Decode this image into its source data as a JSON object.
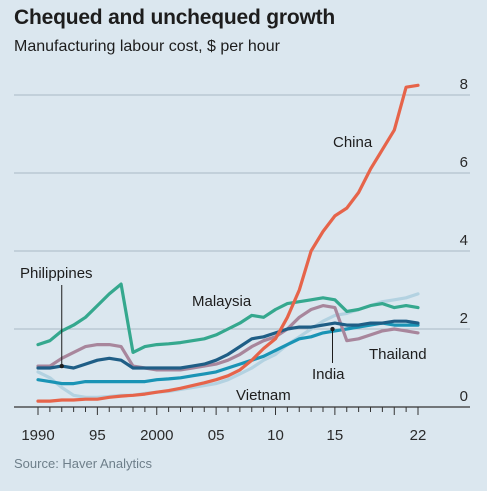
{
  "header": {
    "title": "Chequed and unchequed growth",
    "subtitle": "Manufacturing labour cost, $ per hour"
  },
  "footer": {
    "source": "Source: Haver Analytics"
  },
  "colors": {
    "background": "#dbe7ef",
    "gridline": "#aab9c4",
    "China": "#e6644a",
    "Malaysia": "#35a88e",
    "Philippines": "#a8869c",
    "India": "#1f5e86",
    "Thailand": "#1a94b5",
    "Vietnam": "#b3d2e1"
  },
  "chart_data": {
    "type": "line",
    "title": "Chequed and unchequed growth",
    "subtitle": "Manufacturing labour cost, $ per hour",
    "xlabel": "",
    "ylabel": "",
    "xlim": [
      1990,
      2022
    ],
    "ylim": [
      0,
      8
    ],
    "y_ticks": [
      0,
      2,
      4,
      6,
      8
    ],
    "y_tick_labels": [
      "0",
      "2",
      "4",
      "6",
      "8"
    ],
    "x_tick_labels": [
      {
        "x": 1990,
        "label": "1990"
      },
      {
        "x": 1995,
        "label": "95"
      },
      {
        "x": 2000,
        "label": "2000"
      },
      {
        "x": 2005,
        "label": "05"
      },
      {
        "x": 2010,
        "label": "10"
      },
      {
        "x": 2015,
        "label": "15"
      },
      {
        "x": 2022,
        "label": "22"
      }
    ],
    "y_axis_position": "right",
    "grid": true,
    "legend": "direct labels",
    "series": [
      {
        "name": "Malaysia",
        "x": [
          1990,
          1991,
          1992,
          1993,
          1994,
          1995,
          1996,
          1997,
          1998,
          1999,
          2000,
          2001,
          2002,
          2003,
          2004,
          2005,
          2006,
          2007,
          2008,
          2009,
          2010,
          2011,
          2012,
          2013,
          2014,
          2015,
          2016,
          2017,
          2018,
          2019,
          2020,
          2021,
          2022
        ],
        "values": [
          1.6,
          1.7,
          1.95,
          2.1,
          2.3,
          2.6,
          2.9,
          3.15,
          1.4,
          1.55,
          1.6,
          1.62,
          1.65,
          1.7,
          1.75,
          1.85,
          2.0,
          2.15,
          2.35,
          2.3,
          2.5,
          2.65,
          2.7,
          2.75,
          2.8,
          2.75,
          2.45,
          2.5,
          2.6,
          2.65,
          2.55,
          2.6,
          2.55
        ]
      },
      {
        "name": "China",
        "x": [
          1990,
          1991,
          1992,
          1993,
          1994,
          1995,
          1996,
          1997,
          1998,
          1999,
          2000,
          2001,
          2002,
          2003,
          2004,
          2005,
          2006,
          2007,
          2008,
          2009,
          2010,
          2011,
          2012,
          2013,
          2014,
          2015,
          2016,
          2017,
          2018,
          2019,
          2020,
          2021,
          2022
        ],
        "values": [
          0.15,
          0.15,
          0.18,
          0.18,
          0.2,
          0.2,
          0.25,
          0.28,
          0.3,
          0.33,
          0.38,
          0.42,
          0.48,
          0.55,
          0.62,
          0.7,
          0.8,
          0.95,
          1.2,
          1.5,
          1.75,
          2.3,
          3.0,
          4.0,
          4.5,
          4.9,
          5.1,
          5.5,
          6.1,
          6.6,
          7.1,
          8.2,
          8.25
        ]
      },
      {
        "name": "Philippines",
        "x": [
          1990,
          1991,
          1992,
          1993,
          1994,
          1995,
          1996,
          1997,
          1998,
          1999,
          2000,
          2001,
          2002,
          2003,
          2004,
          2005,
          2006,
          2007,
          2008,
          2009,
          2010,
          2011,
          2012,
          2013,
          2014,
          2015,
          2016,
          2017,
          2018,
          2019,
          2020,
          2021,
          2022
        ],
        "values": [
          1.05,
          1.05,
          1.25,
          1.4,
          1.55,
          1.6,
          1.6,
          1.55,
          1.05,
          1.0,
          0.95,
          0.95,
          0.95,
          1.0,
          1.05,
          1.1,
          1.2,
          1.35,
          1.55,
          1.7,
          1.8,
          2.0,
          2.3,
          2.5,
          2.6,
          2.55,
          1.7,
          1.75,
          1.85,
          1.95,
          2.0,
          1.95,
          1.9
        ]
      },
      {
        "name": "India",
        "x": [
          1990,
          1991,
          1992,
          1993,
          1994,
          1995,
          1996,
          1997,
          1998,
          1999,
          2000,
          2001,
          2002,
          2003,
          2004,
          2005,
          2006,
          2007,
          2008,
          2009,
          2010,
          2011,
          2012,
          2013,
          2014,
          2015,
          2016,
          2017,
          2018,
          2019,
          2020,
          2021,
          2022
        ],
        "values": [
          1.0,
          1.0,
          1.05,
          1.0,
          1.1,
          1.2,
          1.25,
          1.2,
          1.0,
          1.0,
          1.0,
          1.0,
          1.0,
          1.05,
          1.1,
          1.2,
          1.35,
          1.55,
          1.75,
          1.8,
          1.9,
          2.0,
          2.05,
          2.05,
          2.1,
          2.15,
          2.1,
          2.1,
          2.15,
          2.15,
          2.2,
          2.2,
          2.15
        ]
      },
      {
        "name": "Thailand",
        "x": [
          1990,
          1991,
          1992,
          1993,
          1994,
          1995,
          1996,
          1997,
          1998,
          1999,
          2000,
          2001,
          2002,
          2003,
          2004,
          2005,
          2006,
          2007,
          2008,
          2009,
          2010,
          2011,
          2012,
          2013,
          2014,
          2015,
          2016,
          2017,
          2018,
          2019,
          2020,
          2021,
          2022
        ],
        "values": [
          0.7,
          0.65,
          0.6,
          0.6,
          0.65,
          0.65,
          0.65,
          0.65,
          0.65,
          0.65,
          0.7,
          0.72,
          0.75,
          0.8,
          0.85,
          0.9,
          1.0,
          1.1,
          1.2,
          1.3,
          1.45,
          1.6,
          1.75,
          1.8,
          1.9,
          1.95,
          2.0,
          2.05,
          2.1,
          2.15,
          2.1,
          2.1,
          2.1
        ]
      },
      {
        "name": "Vietnam",
        "x": [
          1990,
          1991,
          1992,
          1993,
          1994,
          1995,
          1996,
          1997,
          1998,
          1999,
          2000,
          2001,
          2002,
          2003,
          2004,
          2005,
          2006,
          2007,
          2008,
          2009,
          2010,
          2011,
          2012,
          2013,
          2014,
          2015,
          2016,
          2017,
          2018,
          2019,
          2020,
          2021,
          2022
        ],
        "values": [
          0.9,
          0.75,
          0.5,
          0.3,
          0.25,
          0.25,
          0.27,
          0.3,
          0.3,
          0.35,
          0.38,
          0.4,
          0.45,
          0.5,
          0.55,
          0.6,
          0.7,
          0.85,
          1.0,
          1.2,
          1.35,
          1.6,
          1.8,
          2.0,
          2.2,
          2.35,
          2.4,
          2.5,
          2.6,
          2.7,
          2.75,
          2.8,
          2.9
        ]
      }
    ],
    "annotations": [
      {
        "text": "China",
        "series": "China"
      },
      {
        "text": "Malaysia",
        "series": "Malaysia"
      },
      {
        "text": "Philippines",
        "series": "Philippines"
      },
      {
        "text": "India",
        "series": "India"
      },
      {
        "text": "Thailand",
        "series": "Thailand"
      },
      {
        "text": "Vietnam",
        "series": "Vietnam"
      }
    ]
  }
}
